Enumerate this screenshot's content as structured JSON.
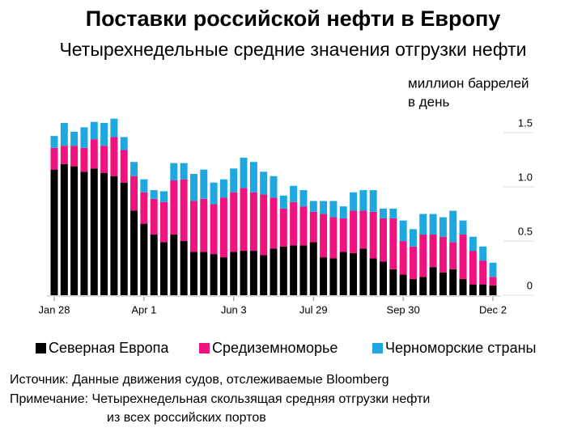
{
  "chart_data": {
    "type": "stacked_bar",
    "title": "Поставки российской нефти в Европу",
    "subtitle": "Четырехнедельные средние значения отгрузки нефти",
    "y_label": [
      "миллион баррелей",
      "в день"
    ],
    "source": "Источник: Данные движения судов, отслеживаемые Bloomberg",
    "note": [
      "Примечание: Четырехнедельная скользящая средняя отгрузки нефти",
      "из всех российских портов"
    ],
    "categories": [
      "Jan 28",
      null,
      null,
      null,
      null,
      null,
      null,
      null,
      null,
      "Apr 1",
      null,
      null,
      null,
      null,
      null,
      null,
      null,
      null,
      "Jun 3",
      null,
      null,
      null,
      null,
      null,
      null,
      null,
      "Jul 29",
      null,
      null,
      null,
      null,
      null,
      null,
      null,
      null,
      "Sep 30",
      null,
      null,
      null,
      null,
      null,
      null,
      null,
      null,
      "Dec 2"
    ],
    "series": [
      {
        "name": "Северная Европа",
        "color": "#000000",
        "values": [
          1.16,
          1.21,
          1.19,
          1.14,
          1.17,
          1.13,
          1.1,
          1.04,
          0.78,
          0.66,
          0.56,
          0.49,
          0.56,
          0.5,
          0.4,
          0.4,
          0.38,
          0.35,
          0.4,
          0.41,
          0.41,
          0.37,
          0.43,
          0.45,
          0.46,
          0.46,
          0.49,
          0.35,
          0.34,
          0.4,
          0.39,
          0.43,
          0.34,
          0.31,
          0.24,
          0.19,
          0.15,
          0.17,
          0.26,
          0.21,
          0.24,
          0.15,
          0.1,
          0.1,
          0.09
        ]
      },
      {
        "name": "Средиземноморье",
        "color": "#f0127f",
        "values": [
          0.2,
          0.17,
          0.19,
          0.22,
          0.27,
          0.25,
          0.36,
          0.3,
          0.32,
          0.29,
          0.33,
          0.37,
          0.5,
          0.57,
          0.47,
          0.49,
          0.46,
          0.55,
          0.55,
          0.58,
          0.54,
          0.56,
          0.47,
          0.35,
          0.4,
          0.36,
          0.28,
          0.4,
          0.38,
          0.31,
          0.39,
          0.35,
          0.43,
          0.4,
          0.47,
          0.31,
          0.3,
          0.39,
          0.3,
          0.33,
          0.25,
          0.41,
          0.31,
          0.22,
          0.08
        ]
      },
      {
        "name": "Черноморские страны",
        "color": "#1fa8e0",
        "values": [
          0.11,
          0.21,
          0.13,
          0.19,
          0.16,
          0.21,
          0.17,
          0.12,
          0.13,
          0.12,
          0.08,
          0.1,
          0.16,
          0.15,
          0.25,
          0.27,
          0.2,
          0.17,
          0.22,
          0.28,
          0.28,
          0.21,
          0.2,
          0.12,
          0.15,
          0.15,
          0.1,
          0.12,
          0.15,
          0.11,
          0.17,
          0.19,
          0.2,
          0.09,
          0.09,
          0.19,
          0.16,
          0.19,
          0.19,
          0.18,
          0.29,
          0.13,
          0.13,
          0.13,
          0.13
        ]
      }
    ],
    "ylim": [
      0,
      1.65
    ],
    "yticks": [
      0,
      0.5,
      {
        "value": 1,
        "label": "1.0"
      },
      1.5
    ]
  }
}
